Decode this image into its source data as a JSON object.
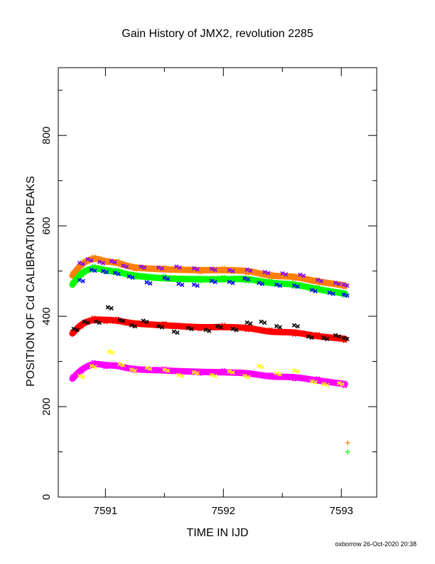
{
  "chart_data": {
    "type": "scatter",
    "title": "Gain History of JMX2, revolution 2285",
    "xlabel": "TIME IN IJD",
    "ylabel": "POSITION OF Cd CALIBRATION PEAKS",
    "xlim": [
      7590.6,
      7593.3
    ],
    "ylim": [
      0,
      950
    ],
    "xticks": [
      7591,
      7592,
      7593
    ],
    "yticks": [
      0,
      200,
      400,
      600,
      800
    ],
    "grid": false,
    "footer": "oxborrow 26-Oct-2020 20:38",
    "series": [
      {
        "color": "#ff8000",
        "style": "smooth",
        "x": [
          7590.72,
          7590.8,
          7590.9,
          7591.0,
          7591.1,
          7591.25,
          7591.5,
          7591.8,
          7592.0,
          7592.2,
          7592.4,
          7592.6,
          7592.8,
          7593.03
        ],
        "y": [
          490,
          515,
          527,
          522,
          518,
          508,
          504,
          502,
          502,
          500,
          490,
          487,
          477,
          468
        ]
      },
      {
        "color": "#8000ff",
        "style": "points",
        "x": [
          7590.78,
          7590.85,
          7590.95,
          7591.05,
          7591.15,
          7591.3,
          7591.45,
          7591.6,
          7591.75,
          7591.9,
          7592.05,
          7592.2,
          7592.35,
          7592.5,
          7592.65,
          7592.8,
          7592.95,
          7593.02
        ],
        "y": [
          518,
          526,
          520,
          522,
          512,
          510,
          508,
          510,
          506,
          505,
          502,
          503,
          498,
          495,
          492,
          480,
          474,
          470
        ]
      },
      {
        "color": "#00ff00",
        "style": "smooth",
        "x": [
          7590.72,
          7590.8,
          7590.9,
          7591.0,
          7591.1,
          7591.25,
          7591.5,
          7591.8,
          7592.0,
          7592.2,
          7592.4,
          7592.6,
          7592.8,
          7593.03
        ],
        "y": [
          470,
          495,
          506,
          502,
          498,
          490,
          484,
          482,
          482,
          482,
          474,
          470,
          460,
          450
        ]
      },
      {
        "color": "#0000ff",
        "style": "points",
        "x": [
          7590.78,
          7590.88,
          7590.98,
          7591.08,
          7591.2,
          7591.35,
          7591.5,
          7591.62,
          7591.75,
          7591.9,
          7592.05,
          7592.18,
          7592.3,
          7592.45,
          7592.6,
          7592.75,
          7592.9,
          7593.02
        ],
        "y": [
          480,
          503,
          500,
          496,
          488,
          475,
          485,
          472,
          470,
          478,
          476,
          484,
          474,
          470,
          468,
          458,
          452,
          448
        ]
      },
      {
        "color": "#ff0000",
        "style": "smooth",
        "x": [
          7590.72,
          7590.8,
          7590.9,
          7591.0,
          7591.1,
          7591.25,
          7591.5,
          7591.8,
          7592.0,
          7592.2,
          7592.4,
          7592.6,
          7592.8,
          7593.03
        ],
        "y": [
          362,
          382,
          392,
          392,
          390,
          384,
          380,
          376,
          376,
          374,
          366,
          364,
          356,
          350
        ]
      },
      {
        "color": "#000000",
        "style": "points",
        "x": [
          7590.73,
          7590.82,
          7590.92,
          7591.02,
          7591.12,
          7591.22,
          7591.32,
          7591.45,
          7591.58,
          7591.7,
          7591.85,
          7591.95,
          7592.08,
          7592.2,
          7592.32,
          7592.45,
          7592.6,
          7592.72,
          7592.85,
          7592.95,
          7593.02
        ],
        "y": [
          372,
          388,
          388,
          420,
          392,
          380,
          390,
          378,
          366,
          374,
          370,
          378,
          372,
          386,
          388,
          378,
          380,
          355,
          352,
          358,
          352
        ]
      },
      {
        "color": "#ff00ff",
        "style": "smooth",
        "x": [
          7590.72,
          7590.8,
          7590.9,
          7591.0,
          7591.1,
          7591.25,
          7591.5,
          7591.8,
          7592.0,
          7592.2,
          7592.4,
          7592.6,
          7592.8,
          7593.03
        ],
        "y": [
          262,
          282,
          294,
          292,
          290,
          283,
          280,
          277,
          276,
          274,
          267,
          265,
          258,
          250
        ]
      },
      {
        "color": "#ffff00",
        "style": "points",
        "x": [
          7590.78,
          7590.88,
          7591.03,
          7591.12,
          7591.22,
          7591.35,
          7591.5,
          7591.62,
          7591.75,
          7591.9,
          7592.05,
          7592.18,
          7592.3,
          7592.45,
          7592.6,
          7592.75,
          7592.85,
          7592.98
        ],
        "y": [
          268,
          290,
          322,
          294,
          282,
          286,
          282,
          270,
          276,
          270,
          278,
          268,
          290,
          274,
          280,
          256,
          250,
          252
        ]
      },
      {
        "color": "#ff8000",
        "style": "marker",
        "x": [
          7593.03
        ],
        "y": [
          120
        ]
      },
      {
        "color": "#00ff00",
        "style": "marker",
        "x": [
          7593.03
        ],
        "y": [
          100
        ]
      }
    ]
  }
}
